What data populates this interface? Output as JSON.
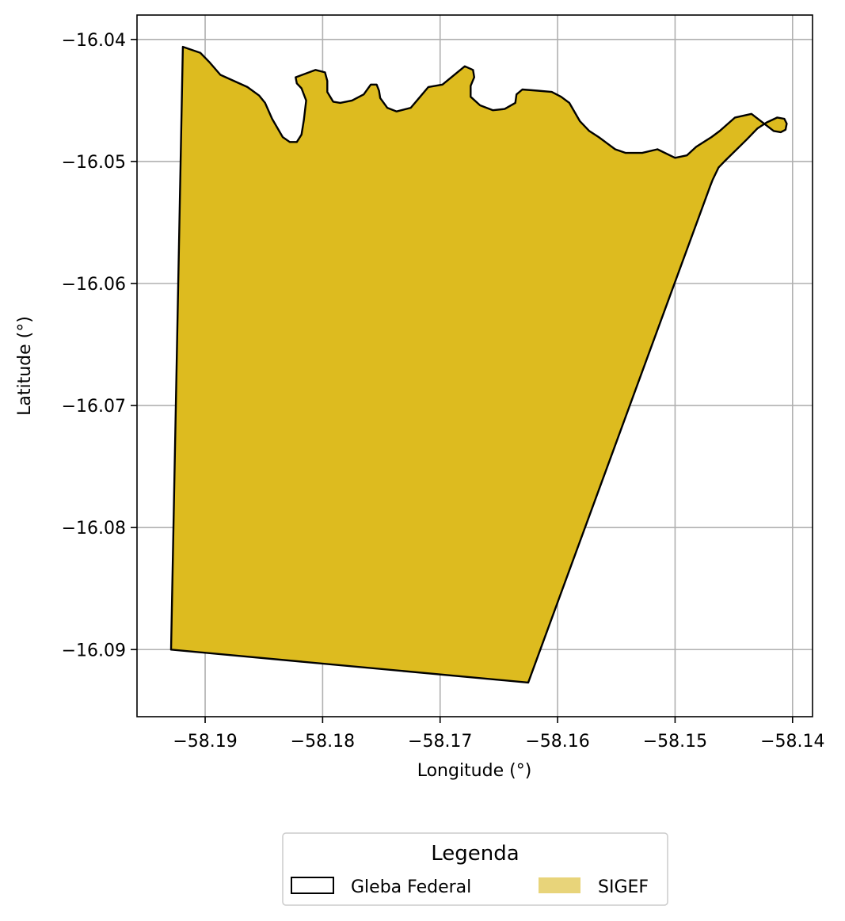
{
  "chart_data": {
    "type": "map",
    "xlabel": "Longitude (°)",
    "ylabel": "Latitude (°)",
    "xlim": [
      -58.1958,
      -58.1383
    ],
    "ylim": [
      -16.0955,
      -16.038
    ],
    "grid": true,
    "xticks": [
      {
        "value": -58.19,
        "label": "−58.19"
      },
      {
        "value": -58.18,
        "label": "−58.18"
      },
      {
        "value": -58.17,
        "label": "−58.17"
      },
      {
        "value": -58.16,
        "label": "−58.16"
      },
      {
        "value": -58.15,
        "label": "−58.15"
      },
      {
        "value": -58.14,
        "label": "−58.14"
      }
    ],
    "yticks": [
      {
        "value": -16.04,
        "label": "−16.04"
      },
      {
        "value": -16.05,
        "label": "−16.05"
      },
      {
        "value": -16.06,
        "label": "−16.06"
      },
      {
        "value": -16.07,
        "label": "−16.07"
      },
      {
        "value": -16.08,
        "label": "−16.08"
      },
      {
        "value": -16.09,
        "label": "−16.09"
      }
    ],
    "layers": [
      {
        "name": "SIGEF",
        "fill": "#ddbb1f",
        "coordinates": [
          [
            -58.1919,
            -16.0406
          ],
          [
            -58.1904,
            -16.0411
          ],
          [
            -58.1896,
            -16.0419
          ],
          [
            -58.1887,
            -16.0429
          ],
          [
            -58.1864,
            -16.0439
          ],
          [
            -58.1854,
            -16.0446
          ],
          [
            -58.1849,
            -16.0452
          ],
          [
            -58.1843,
            -16.0465
          ],
          [
            -58.1834,
            -16.048
          ],
          [
            -58.1828,
            -16.0484
          ],
          [
            -58.1822,
            -16.0484
          ],
          [
            -58.1818,
            -16.0478
          ],
          [
            -58.1816,
            -16.0466
          ],
          [
            -58.1814,
            -16.045
          ],
          [
            -58.1818,
            -16.044
          ],
          [
            -58.1822,
            -16.0436
          ],
          [
            -58.1823,
            -16.0431
          ],
          [
            -58.1806,
            -16.0425
          ],
          [
            -58.1798,
            -16.0427
          ],
          [
            -58.1796,
            -16.0434
          ],
          [
            -58.1796,
            -16.0443
          ],
          [
            -58.1791,
            -16.0451
          ],
          [
            -58.1785,
            -16.0452
          ],
          [
            -58.1775,
            -16.045
          ],
          [
            -58.1765,
            -16.0445
          ],
          [
            -58.1759,
            -16.0437
          ],
          [
            -58.1754,
            -16.0437
          ],
          [
            -58.1752,
            -16.0442
          ],
          [
            -58.1751,
            -16.0448
          ],
          [
            -58.1745,
            -16.0456
          ],
          [
            -58.1737,
            -16.0459
          ],
          [
            -58.1725,
            -16.0456
          ],
          [
            -58.1717,
            -16.0447
          ],
          [
            -58.171,
            -16.0439
          ],
          [
            -58.1698,
            -16.0437
          ],
          [
            -58.1679,
            -16.0422
          ],
          [
            -58.1672,
            -16.0425
          ],
          [
            -58.1671,
            -16.0431
          ],
          [
            -58.1674,
            -16.0438
          ],
          [
            -58.1674,
            -16.0447
          ],
          [
            -58.1666,
            -16.0454
          ],
          [
            -58.1655,
            -16.0458
          ],
          [
            -58.1645,
            -16.0457
          ],
          [
            -58.1636,
            -16.0452
          ],
          [
            -58.1635,
            -16.0445
          ],
          [
            -58.163,
            -16.0441
          ],
          [
            -58.1617,
            -16.0442
          ],
          [
            -58.1605,
            -16.0443
          ],
          [
            -58.1597,
            -16.0447
          ],
          [
            -58.159,
            -16.0452
          ],
          [
            -58.1581,
            -16.0467
          ],
          [
            -58.1573,
            -16.0475
          ],
          [
            -58.1565,
            -16.048
          ],
          [
            -58.1558,
            -16.0485
          ],
          [
            -58.1551,
            -16.049
          ],
          [
            -58.1542,
            -16.0493
          ],
          [
            -58.1528,
            -16.0493
          ],
          [
            -58.1515,
            -16.049
          ],
          [
            -58.15,
            -16.0497
          ],
          [
            -58.149,
            -16.0495
          ],
          [
            -58.1482,
            -16.0488
          ],
          [
            -58.1469,
            -16.048
          ],
          [
            -58.1462,
            -16.0475
          ],
          [
            -58.1449,
            -16.0464
          ],
          [
            -58.1435,
            -16.0461
          ],
          [
            -58.1416,
            -16.0475
          ],
          [
            -58.141,
            -16.0476
          ],
          [
            -58.1406,
            -16.0474
          ],
          [
            -58.1405,
            -16.0469
          ],
          [
            -58.1407,
            -16.0465
          ],
          [
            -58.1413,
            -16.0464
          ],
          [
            -58.1422,
            -16.0468
          ],
          [
            -58.143,
            -16.0473
          ],
          [
            -58.1439,
            -16.0482
          ],
          [
            -58.1458,
            -16.05
          ],
          [
            -58.1463,
            -16.0505
          ],
          [
            -58.1468,
            -16.0515
          ],
          [
            -58.147,
            -16.052
          ],
          [
            -58.1625,
            -16.0927
          ],
          [
            -58.1929,
            -16.09
          ]
        ]
      }
    ],
    "legend": {
      "title": "Legenda",
      "position": "bottom-center",
      "entries": [
        {
          "label": "Gleba Federal",
          "style": "outline",
          "color": "#000000"
        },
        {
          "label": "SIGEF",
          "style": "fill",
          "color": "#e8d47a"
        }
      ]
    }
  }
}
